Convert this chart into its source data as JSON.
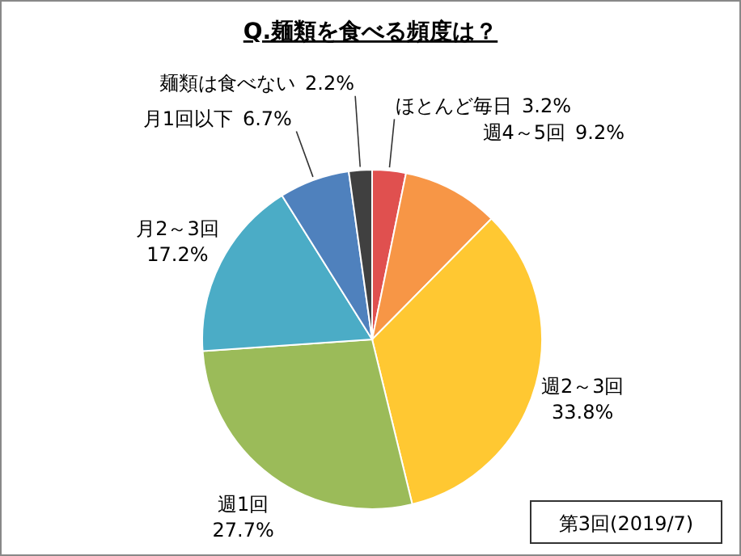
{
  "chart_data": {
    "type": "pie",
    "title": "Q.麺類を食べる頻度は？",
    "categories": [
      "ほとんど毎日",
      "週4～5回",
      "週2～3回",
      "週1回",
      "月2～3回",
      "月1回以下",
      "麺類は食べない"
    ],
    "values": [
      3.2,
      9.2,
      33.8,
      27.7,
      17.2,
      6.7,
      2.2
    ],
    "colors": [
      "#e0504f",
      "#f79646",
      "#ffc832",
      "#9bbb59",
      "#4bacc6",
      "#4f81bd",
      "#404040"
    ],
    "value_labels": [
      "3.2%",
      "9.2%",
      "33.8%",
      "27.7%",
      "17.2%",
      "6.7%",
      "2.2%"
    ],
    "annotations": [
      "第3回(2019/7)"
    ]
  }
}
